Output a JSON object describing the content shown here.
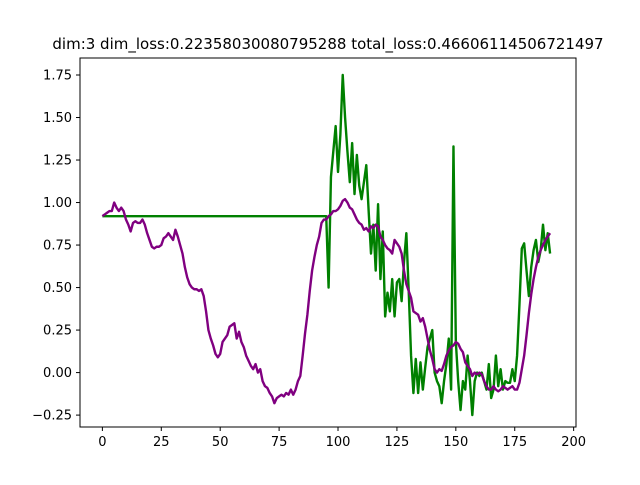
{
  "chart_data": {
    "type": "line",
    "title": "dim:3 dim_loss:0.22358030080795288 total_loss:0.46606114506721497",
    "xlabel": "",
    "ylabel": "",
    "xlim": [
      -9.5,
      201
    ],
    "ylim": [
      -0.32,
      1.85
    ],
    "x_ticks": [
      0,
      25,
      50,
      75,
      100,
      125,
      150,
      175,
      200
    ],
    "y_ticks": [
      -0.25,
      0.0,
      0.25,
      0.5,
      0.75,
      1.0,
      1.25,
      1.5,
      1.75
    ],
    "x_tick_labels": [
      "0",
      "25",
      "50",
      "75",
      "100",
      "125",
      "150",
      "175",
      "200"
    ],
    "y_tick_labels": [
      "−0.25",
      "0.00",
      "0.25",
      "0.50",
      "0.75",
      "1.00",
      "1.25",
      "1.50",
      "1.75"
    ],
    "grid": false,
    "legend": "none",
    "series": [
      {
        "color": "#008000",
        "points": [
          [
            0,
            0.92
          ],
          [
            95,
            0.92
          ],
          [
            96,
            0.5
          ],
          [
            97,
            1.15
          ],
          [
            98,
            1.3
          ],
          [
            99,
            1.45
          ],
          [
            100,
            1.18
          ],
          [
            101,
            1.4
          ],
          [
            102,
            1.75
          ],
          [
            103,
            1.5
          ],
          [
            104,
            1.3
          ],
          [
            105,
            1.12
          ],
          [
            106,
            1.35
          ],
          [
            107,
            1.05
          ],
          [
            108,
            1.28
          ],
          [
            109,
            1.1
          ],
          [
            110,
            1.02
          ],
          [
            111,
            1.12
          ],
          [
            112,
            1.22
          ],
          [
            113,
            0.95
          ],
          [
            114,
            0.7
          ],
          [
            115,
            0.87
          ],
          [
            116,
            0.6
          ],
          [
            117,
            0.99
          ],
          [
            118,
            0.55
          ],
          [
            119,
            0.83
          ],
          [
            120,
            0.33
          ],
          [
            121,
            0.47
          ],
          [
            122,
            0.36
          ],
          [
            123,
            0.55
          ],
          [
            124,
            0.33
          ],
          [
            125,
            0.53
          ],
          [
            126,
            0.55
          ],
          [
            127,
            0.42
          ],
          [
            128,
            0.65
          ],
          [
            129,
            0.82
          ],
          [
            130,
            0.48
          ],
          [
            131,
            0.1
          ],
          [
            132,
            -0.12
          ],
          [
            133,
            0.08
          ],
          [
            134,
            -0.12
          ],
          [
            135,
            0.06
          ],
          [
            136,
            -0.1
          ],
          [
            137,
            0.03
          ],
          [
            138,
            0.15
          ],
          [
            139,
            0.2
          ],
          [
            140,
            0.25
          ],
          [
            141,
            0.0
          ],
          [
            142,
            -0.05
          ],
          [
            143,
            -0.08
          ],
          [
            144,
            -0.18
          ],
          [
            145,
            -0.05
          ],
          [
            146,
            0.05
          ],
          [
            147,
            0.2
          ],
          [
            148,
            -0.1
          ],
          [
            149,
            1.33
          ],
          [
            150,
            0.18
          ],
          [
            151,
            -0.05
          ],
          [
            152,
            -0.22
          ],
          [
            153,
            -0.05
          ],
          [
            154,
            -0.1
          ],
          [
            155,
            0.1
          ],
          [
            156,
            -0.05
          ],
          [
            157,
            -0.25
          ],
          [
            158,
            -0.05
          ],
          [
            159,
            0.0
          ],
          [
            160,
            -0.02
          ],
          [
            161,
            0.0
          ],
          [
            162,
            -0.05
          ],
          [
            163,
            -0.1
          ],
          [
            164,
            0.05
          ],
          [
            165,
            -0.15
          ],
          [
            166,
            -0.1
          ],
          [
            167,
            0.1
          ],
          [
            168,
            -0.08
          ],
          [
            169,
            0.02
          ],
          [
            170,
            -0.1
          ],
          [
            171,
            -0.05
          ],
          [
            172,
            -0.06
          ],
          [
            173,
            -0.06
          ],
          [
            174,
            0.02
          ],
          [
            175,
            -0.05
          ],
          [
            176,
            0.1
          ],
          [
            177,
            0.4
          ],
          [
            178,
            0.73
          ],
          [
            179,
            0.76
          ],
          [
            180,
            0.6
          ],
          [
            181,
            0.45
          ],
          [
            182,
            0.62
          ],
          [
            183,
            0.72
          ],
          [
            184,
            0.78
          ],
          [
            185,
            0.65
          ],
          [
            186,
            0.72
          ],
          [
            187,
            0.87
          ],
          [
            188,
            0.72
          ],
          [
            189,
            0.82
          ],
          [
            190,
            0.7
          ]
        ]
      },
      {
        "color": "#800080",
        "points": [
          [
            0,
            0.92
          ],
          [
            1,
            0.93
          ],
          [
            2,
            0.94
          ],
          [
            3,
            0.95
          ],
          [
            4,
            0.95
          ],
          [
            5,
            1.0
          ],
          [
            6,
            0.97
          ],
          [
            7,
            0.95
          ],
          [
            8,
            0.97
          ],
          [
            9,
            0.95
          ],
          [
            10,
            0.9
          ],
          [
            11,
            0.87
          ],
          [
            12,
            0.83
          ],
          [
            13,
            0.88
          ],
          [
            14,
            0.89
          ],
          [
            15,
            0.88
          ],
          [
            16,
            0.88
          ],
          [
            17,
            0.9
          ],
          [
            18,
            0.87
          ],
          [
            19,
            0.82
          ],
          [
            20,
            0.78
          ],
          [
            21,
            0.74
          ],
          [
            22,
            0.73
          ],
          [
            23,
            0.74
          ],
          [
            24,
            0.74
          ],
          [
            25,
            0.75
          ],
          [
            26,
            0.79
          ],
          [
            27,
            0.8
          ],
          [
            28,
            0.82
          ],
          [
            29,
            0.8
          ],
          [
            30,
            0.78
          ],
          [
            31,
            0.84
          ],
          [
            32,
            0.8
          ],
          [
            33,
            0.75
          ],
          [
            34,
            0.7
          ],
          [
            35,
            0.62
          ],
          [
            36,
            0.56
          ],
          [
            37,
            0.52
          ],
          [
            38,
            0.5
          ],
          [
            39,
            0.49
          ],
          [
            40,
            0.49
          ],
          [
            41,
            0.48
          ],
          [
            42,
            0.49
          ],
          [
            43,
            0.45
          ],
          [
            44,
            0.36
          ],
          [
            45,
            0.25
          ],
          [
            46,
            0.2
          ],
          [
            47,
            0.16
          ],
          [
            48,
            0.11
          ],
          [
            49,
            0.09
          ],
          [
            50,
            0.11
          ],
          [
            51,
            0.18
          ],
          [
            52,
            0.2
          ],
          [
            53,
            0.22
          ],
          [
            54,
            0.27
          ],
          [
            55,
            0.28
          ],
          [
            56,
            0.29
          ],
          [
            57,
            0.2
          ],
          [
            58,
            0.24
          ],
          [
            59,
            0.18
          ],
          [
            60,
            0.15
          ],
          [
            61,
            0.1
          ],
          [
            62,
            0.07
          ],
          [
            63,
            0.04
          ],
          [
            64,
            0.02
          ],
          [
            65,
            0.05
          ],
          [
            66,
            0.0
          ],
          [
            67,
            0.02
          ],
          [
            68,
            -0.05
          ],
          [
            69,
            -0.08
          ],
          [
            70,
            -0.09
          ],
          [
            71,
            -0.12
          ],
          [
            72,
            -0.14
          ],
          [
            73,
            -0.18
          ],
          [
            74,
            -0.15
          ],
          [
            75,
            -0.14
          ],
          [
            76,
            -0.13
          ],
          [
            77,
            -0.14
          ],
          [
            78,
            -0.12
          ],
          [
            79,
            -0.13
          ],
          [
            80,
            -0.1
          ],
          [
            81,
            -0.13
          ],
          [
            82,
            -0.1
          ],
          [
            83,
            -0.05
          ],
          [
            84,
            -0.02
          ],
          [
            85,
            0.1
          ],
          [
            86,
            0.23
          ],
          [
            87,
            0.34
          ],
          [
            88,
            0.48
          ],
          [
            89,
            0.6
          ],
          [
            90,
            0.68
          ],
          [
            91,
            0.75
          ],
          [
            92,
            0.8
          ],
          [
            93,
            0.88
          ],
          [
            94,
            0.9
          ],
          [
            95,
            0.9
          ],
          [
            96,
            0.92
          ],
          [
            97,
            0.93
          ],
          [
            98,
            0.95
          ],
          [
            99,
            0.95
          ],
          [
            100,
            0.96
          ],
          [
            101,
            0.98
          ],
          [
            102,
            1.01
          ],
          [
            103,
            1.02
          ],
          [
            104,
            1.0
          ],
          [
            105,
            0.97
          ],
          [
            106,
            0.96
          ],
          [
            107,
            0.93
          ],
          [
            108,
            0.9
          ],
          [
            109,
            0.88
          ],
          [
            110,
            0.87
          ],
          [
            111,
            0.84
          ],
          [
            112,
            0.85
          ],
          [
            113,
            0.83
          ],
          [
            114,
            0.86
          ],
          [
            115,
            0.85
          ],
          [
            116,
            0.87
          ],
          [
            117,
            0.86
          ],
          [
            118,
            0.8
          ],
          [
            119,
            0.78
          ],
          [
            120,
            0.75
          ],
          [
            121,
            0.73
          ],
          [
            122,
            0.72
          ],
          [
            123,
            0.7
          ],
          [
            124,
            0.78
          ],
          [
            125,
            0.76
          ],
          [
            126,
            0.74
          ],
          [
            127,
            0.7
          ],
          [
            128,
            0.6
          ],
          [
            129,
            0.52
          ],
          [
            130,
            0.48
          ],
          [
            131,
            0.44
          ],
          [
            132,
            0.36
          ],
          [
            133,
            0.35
          ],
          [
            134,
            0.34
          ],
          [
            135,
            0.3
          ],
          [
            136,
            0.32
          ],
          [
            137,
            0.27
          ],
          [
            138,
            0.2
          ],
          [
            139,
            0.13
          ],
          [
            140,
            0.08
          ],
          [
            141,
            0.02
          ],
          [
            142,
            0.0
          ],
          [
            143,
            0.02
          ],
          [
            144,
            0.01
          ],
          [
            145,
            0.05
          ],
          [
            146,
            0.1
          ],
          [
            147,
            0.13
          ],
          [
            148,
            0.15
          ],
          [
            149,
            0.16
          ],
          [
            150,
            0.18
          ],
          [
            151,
            0.17
          ],
          [
            152,
            0.14
          ],
          [
            153,
            0.12
          ],
          [
            154,
            0.06
          ],
          [
            155,
            0.04
          ],
          [
            156,
            0.02
          ],
          [
            157,
            -0.02
          ],
          [
            158,
            0.0
          ],
          [
            159,
            -0.01
          ],
          [
            160,
            0.0
          ],
          [
            161,
            -0.01
          ],
          [
            162,
            -0.05
          ],
          [
            163,
            -0.08
          ],
          [
            164,
            -0.1
          ],
          [
            165,
            -0.1
          ],
          [
            166,
            -0.08
          ],
          [
            167,
            -0.1
          ],
          [
            168,
            -0.11
          ],
          [
            169,
            -0.1
          ],
          [
            170,
            -0.08
          ],
          [
            171,
            -0.09
          ],
          [
            172,
            -0.1
          ],
          [
            173,
            -0.09
          ],
          [
            174,
            -0.08
          ],
          [
            175,
            -0.1
          ],
          [
            176,
            -0.1
          ],
          [
            177,
            -0.06
          ],
          [
            178,
            0.02
          ],
          [
            179,
            0.1
          ],
          [
            180,
            0.22
          ],
          [
            181,
            0.35
          ],
          [
            182,
            0.46
          ],
          [
            183,
            0.55
          ],
          [
            184,
            0.62
          ],
          [
            185,
            0.68
          ],
          [
            186,
            0.72
          ],
          [
            187,
            0.75
          ],
          [
            188,
            0.78
          ],
          [
            189,
            0.8
          ],
          [
            190,
            0.82
          ]
        ]
      }
    ]
  }
}
